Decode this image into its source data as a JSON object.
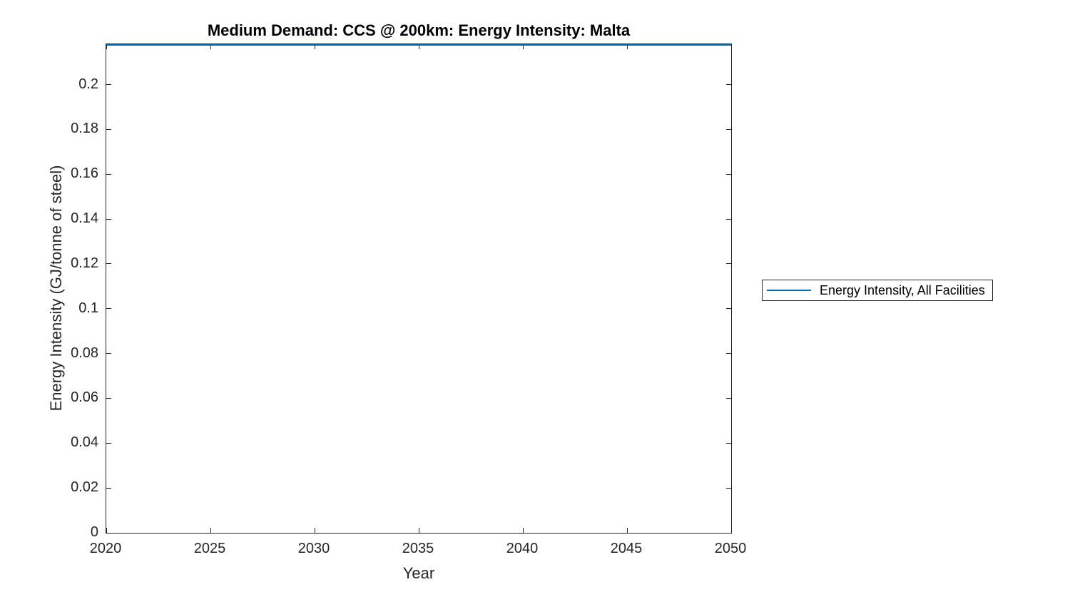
{
  "figure": {
    "background": "#ffffff",
    "axis_color": "#262626",
    "title_color": "#000000"
  },
  "chart_data": {
    "type": "line",
    "title": "Medium Demand: CCS @ 200km: Energy Intensity: Malta",
    "xlabel": "Year",
    "ylabel": "Energy Intensity (GJ/tonne of steel)",
    "x": [
      2020,
      2025,
      2030,
      2035,
      2040,
      2045,
      2050
    ],
    "series": [
      {
        "name": "Energy Intensity, All Facilities",
        "color": "#0072BD",
        "values": [
          0.218,
          0.218,
          0.218,
          0.218,
          0.218,
          0.218,
          0.218
        ]
      }
    ],
    "xlim": [
      2020,
      2050
    ],
    "ylim": [
      0,
      0.218
    ],
    "x_ticks": [
      2020,
      2025,
      2030,
      2035,
      2040,
      2045,
      2050
    ],
    "x_tick_labels": [
      "2020",
      "2025",
      "2030",
      "2035",
      "2040",
      "2045",
      "2050"
    ],
    "y_ticks": [
      0,
      0.02,
      0.04,
      0.06,
      0.08,
      0.1,
      0.12,
      0.14,
      0.16,
      0.18,
      0.2
    ],
    "y_tick_labels": [
      "0",
      "0.02",
      "0.04",
      "0.06",
      "0.08",
      "0.1",
      "0.12",
      "0.14",
      "0.16",
      "0.18",
      "0.2"
    ],
    "grid": false,
    "box": true,
    "tick_direction": "in",
    "legend": {
      "position": "right-outside",
      "entries": [
        "Energy Intensity, All Facilities"
      ]
    }
  }
}
